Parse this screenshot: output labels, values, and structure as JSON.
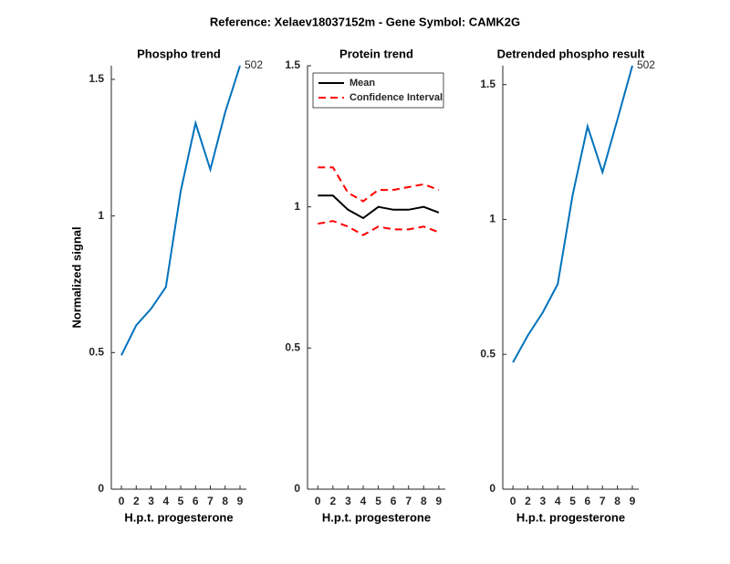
{
  "title": "Reference:  Xelaev18037152m - Gene Symbol:  CAMK2G",
  "chart_data": [
    {
      "type": "line",
      "title": "Phospho trend",
      "xlabel": "H.p.t. progesterone",
      "ylabel": "Normalized signal",
      "categories": [
        "0",
        "2",
        "3",
        "4",
        "5",
        "6",
        "7",
        "8",
        "9"
      ],
      "series": [
        {
          "color": "#0072bd",
          "line_style": "solid",
          "values": [
            0.49,
            0.6,
            0.66,
            0.74,
            1.09,
            1.34,
            1.17,
            1.38,
            1.55
          ]
        }
      ],
      "annotation": "502",
      "ylim": [
        0,
        1.55
      ],
      "yticks": [
        0,
        0.5,
        1,
        1.5
      ]
    },
    {
      "type": "line",
      "title": "Protein trend",
      "xlabel": "H.p.t. progesterone",
      "categories": [
        "0",
        "2",
        "3",
        "4",
        "5",
        "6",
        "7",
        "8",
        "9"
      ],
      "series": [
        {
          "name": "Mean",
          "color": "#000000",
          "line_style": "solid",
          "values": [
            1.04,
            1.04,
            0.99,
            0.96,
            1.0,
            0.99,
            0.99,
            1.0,
            0.98
          ]
        },
        {
          "name": "Confidence Interval",
          "color": "#ff0000",
          "line_style": "dashed",
          "values": [
            1.14,
            1.14,
            1.05,
            1.02,
            1.06,
            1.06,
            1.07,
            1.08,
            1.06
          ]
        },
        {
          "color": "#ff0000",
          "line_style": "dashed",
          "values": [
            0.94,
            0.95,
            0.93,
            0.9,
            0.93,
            0.92,
            0.92,
            0.93,
            0.91
          ]
        }
      ],
      "legend": "upper right",
      "ylim": [
        0,
        1.5
      ],
      "yticks": [
        0,
        0.5,
        1,
        1.5
      ]
    },
    {
      "type": "line",
      "title": "Detrended phospho result",
      "xlabel": "H.p.t. progesterone",
      "categories": [
        "0",
        "2",
        "3",
        "4",
        "5",
        "6",
        "7",
        "8",
        "9"
      ],
      "series": [
        {
          "color": "#0072bd",
          "line_style": "solid",
          "values": [
            0.47,
            0.57,
            0.655,
            0.76,
            1.09,
            1.345,
            1.175,
            1.37,
            1.57
          ]
        }
      ],
      "annotation": "502",
      "ylim": [
        0,
        1.57
      ],
      "yticks": [
        0,
        0.5,
        1,
        1.5
      ]
    }
  ]
}
